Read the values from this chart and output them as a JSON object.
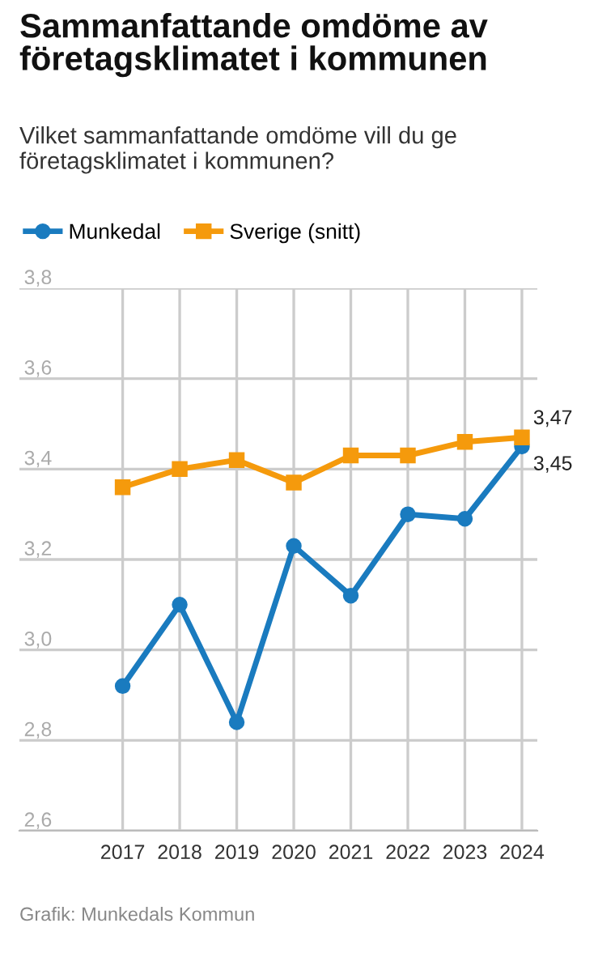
{
  "chart_data": {
    "type": "line",
    "title": "Sammanfattande omdöme av företagsklimatet i kommunen",
    "subtitle": "Vilket sammanfattande omdöme vill du ge företagsklimatet i kommunen?",
    "categories": [
      "2017",
      "2018",
      "2019",
      "2020",
      "2021",
      "2022",
      "2023",
      "2024"
    ],
    "series": [
      {
        "name": "Munkedal",
        "color": "#1a7bbf",
        "marker": "circle",
        "values": [
          2.92,
          3.1,
          2.84,
          3.23,
          3.12,
          3.3,
          3.29,
          3.45
        ],
        "value_labels": [
          null,
          null,
          null,
          null,
          null,
          null,
          null,
          "3,45"
        ]
      },
      {
        "name": "Sverige (snitt)",
        "color": "#f59a0c",
        "marker": "square",
        "values": [
          3.36,
          3.4,
          3.42,
          3.37,
          3.43,
          3.43,
          3.46,
          3.47
        ],
        "value_labels": [
          null,
          null,
          null,
          null,
          null,
          null,
          null,
          "3,47"
        ]
      }
    ],
    "ylim": [
      2.6,
      3.8
    ],
    "yticks": [
      {
        "value": 2.6,
        "label": "2,6"
      },
      {
        "value": 2.8,
        "label": "2,8"
      },
      {
        "value": 3.0,
        "label": "3,0"
      },
      {
        "value": 3.2,
        "label": "3,2"
      },
      {
        "value": 3.4,
        "label": "3,4"
      },
      {
        "value": 3.6,
        "label": "3,6"
      },
      {
        "value": 3.8,
        "label": "3,8"
      }
    ],
    "grid": true,
    "legend": "top",
    "line_style": "solid",
    "annotations": [
      "Grafik: Munkedals Kommun"
    ]
  }
}
